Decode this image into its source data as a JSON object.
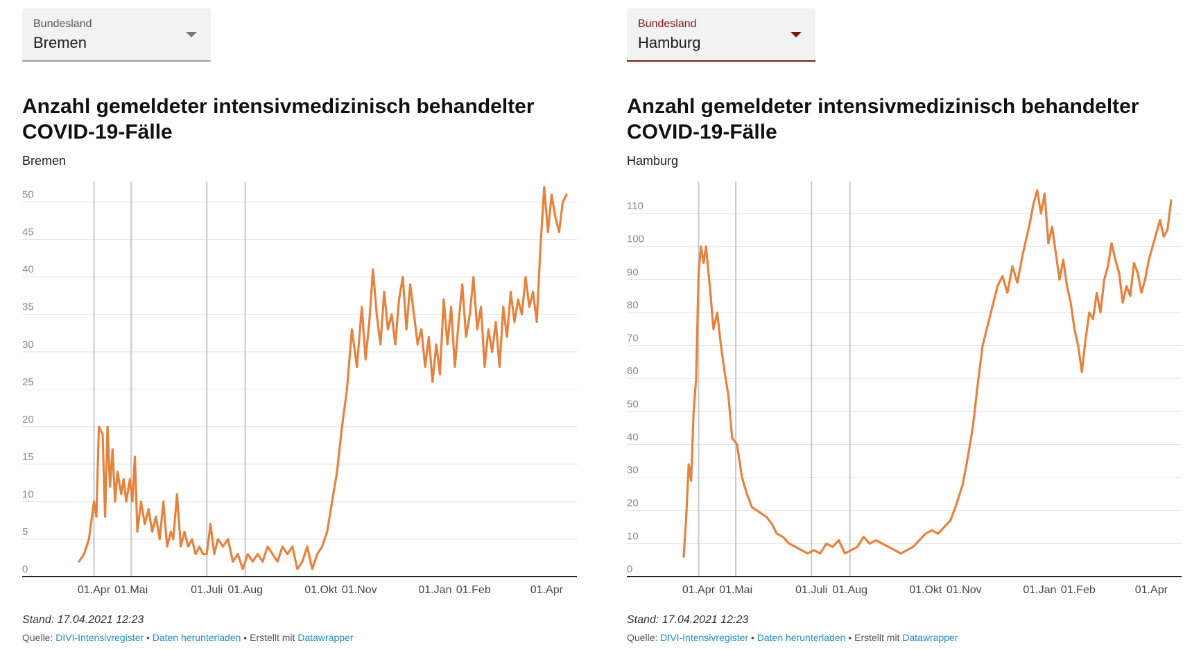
{
  "charts": [
    {
      "dropdown": {
        "label": "Bundesland",
        "value": "Bremen"
      },
      "stand": "Stand: 17.04.2021 12:23",
      "source": {
        "prefix": "Quelle: ",
        "link1": "DIVI-Intensivregister",
        "sep1": " • ",
        "link2": "Daten herunterladen",
        "sep2": " • Erstellt mit ",
        "link3": "Datawrapper"
      },
      "chart_data": {
        "type": "line",
        "title": "Anzahl gemeldeter intensivmedizinisch behandelter COVID-19-Fälle",
        "subtitle": "Bremen",
        "ylim": [
          0,
          52
        ],
        "y_ticks": [
          0,
          5,
          10,
          15,
          20,
          25,
          30,
          35,
          40,
          45,
          50
        ],
        "x_range": [
          "2020-03-20",
          "2021-04-17"
        ],
        "x_ticks": [
          {
            "label": "01.Apr",
            "date": "2020-04-01"
          },
          {
            "label": "01.Mai",
            "date": "2020-05-01"
          },
          {
            "label": "01.Juli",
            "date": "2020-07-01"
          },
          {
            "label": "01.Aug",
            "date": "2020-08-01"
          },
          {
            "label": "01.Okt",
            "date": "2020-10-01"
          },
          {
            "label": "01.Nov",
            "date": "2020-11-01"
          },
          {
            "label": "01.Jan",
            "date": "2021-01-01"
          },
          {
            "label": "01.Feb",
            "date": "2021-02-01"
          },
          {
            "label": "01.Apr",
            "date": "2021-04-01"
          }
        ],
        "vlines": [
          "2020-04-01",
          "2020-05-01",
          "2020-07-01",
          "2020-08-01"
        ],
        "grid": true,
        "line_color": "#e6823d",
        "series": [
          {
            "x": [
              "2020-03-20",
              "2020-03-24",
              "2020-03-28",
              "2020-04-01",
              "2020-04-03",
              "2020-04-05",
              "2020-04-08",
              "2020-04-10",
              "2020-04-12",
              "2020-04-14",
              "2020-04-16",
              "2020-04-18",
              "2020-04-20",
              "2020-04-23",
              "2020-04-25",
              "2020-04-27",
              "2020-04-30",
              "2020-05-02",
              "2020-05-04",
              "2020-05-06",
              "2020-05-09",
              "2020-05-12",
              "2020-05-15",
              "2020-05-18",
              "2020-05-21",
              "2020-05-24",
              "2020-05-27",
              "2020-05-30",
              "2020-06-02",
              "2020-06-04",
              "2020-06-07",
              "2020-06-10",
              "2020-06-13",
              "2020-06-16",
              "2020-06-19",
              "2020-06-22",
              "2020-06-25",
              "2020-06-28",
              "2020-07-01",
              "2020-07-04",
              "2020-07-07",
              "2020-07-10",
              "2020-07-14",
              "2020-07-18",
              "2020-07-22",
              "2020-07-26",
              "2020-07-30",
              "2020-08-03",
              "2020-08-07",
              "2020-08-11",
              "2020-08-15",
              "2020-08-19",
              "2020-08-23",
              "2020-08-27",
              "2020-08-31",
              "2020-09-04",
              "2020-09-08",
              "2020-09-12",
              "2020-09-16",
              "2020-09-20",
              "2020-09-24",
              "2020-09-28",
              "2020-10-02",
              "2020-10-06",
              "2020-10-10",
              "2020-10-14",
              "2020-10-18",
              "2020-10-22",
              "2020-10-26",
              "2020-10-30",
              "2020-11-03",
              "2020-11-06",
              "2020-11-09",
              "2020-11-12",
              "2020-11-15",
              "2020-11-18",
              "2020-11-21",
              "2020-11-24",
              "2020-11-27",
              "2020-11-30",
              "2020-12-03",
              "2020-12-06",
              "2020-12-09",
              "2020-12-12",
              "2020-12-15",
              "2020-12-18",
              "2020-12-21",
              "2020-12-24",
              "2020-12-27",
              "2020-12-30",
              "2021-01-02",
              "2021-01-05",
              "2021-01-08",
              "2021-01-11",
              "2021-01-14",
              "2021-01-17",
              "2021-01-20",
              "2021-01-23",
              "2021-01-26",
              "2021-01-29",
              "2021-02-01",
              "2021-02-04",
              "2021-02-07",
              "2021-02-10",
              "2021-02-13",
              "2021-02-16",
              "2021-02-19",
              "2021-02-22",
              "2021-02-25",
              "2021-02-28",
              "2021-03-03",
              "2021-03-06",
              "2021-03-09",
              "2021-03-12",
              "2021-03-15",
              "2021-03-18",
              "2021-03-21",
              "2021-03-24",
              "2021-03-27",
              "2021-03-30",
              "2021-04-02",
              "2021-04-05",
              "2021-04-08",
              "2021-04-11",
              "2021-04-14",
              "2021-04-17"
            ],
            "values": [
              2,
              3,
              5,
              10,
              8,
              20,
              19,
              8,
              20,
              12,
              17,
              10,
              14,
              11,
              13,
              10,
              13,
              10,
              16,
              6,
              10,
              7,
              9,
              6,
              8,
              5,
              10,
              4,
              6,
              5,
              11,
              4,
              6,
              4,
              5,
              3,
              4,
              3,
              3,
              7,
              3,
              5,
              4,
              5,
              2,
              3,
              1,
              3,
              2,
              3,
              2,
              4,
              3,
              2,
              4,
              3,
              4,
              1,
              2,
              4,
              1,
              3,
              4,
              6,
              10,
              14,
              20,
              25,
              33,
              28,
              36,
              29,
              34,
              41,
              35,
              31,
              38,
              33,
              35,
              31,
              37,
              40,
              33,
              39,
              35,
              31,
              33,
              28,
              32,
              26,
              31,
              27,
              37,
              31,
              36,
              28,
              34,
              39,
              32,
              35,
              40,
              33,
              36,
              28,
              33,
              30,
              34,
              28,
              36,
              32,
              38,
              34,
              37,
              35,
              40,
              36,
              38,
              34,
              44,
              52,
              46,
              51,
              48,
              46,
              50,
              51
            ]
          }
        ]
      }
    },
    {
      "dropdown": {
        "label": "Bundesland",
        "value": "Hamburg"
      },
      "stand": "Stand: 17.04.2021 12:23",
      "source": {
        "prefix": "Quelle: ",
        "link1": "DIVI-Intensivregister",
        "sep1": " • ",
        "link2": "Daten herunterladen",
        "sep2": " • Erstellt mit ",
        "link3": "Datawrapper"
      },
      "chart_data": {
        "type": "line",
        "title": "Anzahl gemeldeter intensivmedizinisch behandelter COVID-19-Fälle",
        "subtitle": "Hamburg",
        "ylim": [
          0,
          118
        ],
        "y_ticks": [
          0,
          10,
          20,
          30,
          40,
          50,
          60,
          70,
          80,
          90,
          100,
          110
        ],
        "x_range": [
          "2020-03-20",
          "2021-04-17"
        ],
        "x_ticks": [
          {
            "label": "01.Apr",
            "date": "2020-04-01"
          },
          {
            "label": "01.Mai",
            "date": "2020-05-01"
          },
          {
            "label": "01.Juli",
            "date": "2020-07-01"
          },
          {
            "label": "01.Aug",
            "date": "2020-08-01"
          },
          {
            "label": "01.Okt",
            "date": "2020-10-01"
          },
          {
            "label": "01.Nov",
            "date": "2020-11-01"
          },
          {
            "label": "01.Jan",
            "date": "2021-01-01"
          },
          {
            "label": "01.Feb",
            "date": "2021-02-01"
          },
          {
            "label": "01.Apr",
            "date": "2021-04-01"
          }
        ],
        "vlines": [
          "2020-04-01",
          "2020-05-01",
          "2020-07-01",
          "2020-08-01"
        ],
        "grid": true,
        "line_color": "#e6823d",
        "series": [
          {
            "x": [
              "2020-03-20",
              "2020-03-22",
              "2020-03-24",
              "2020-03-26",
              "2020-03-28",
              "2020-03-30",
              "2020-04-01",
              "2020-04-03",
              "2020-04-05",
              "2020-04-07",
              "2020-04-10",
              "2020-04-13",
              "2020-04-16",
              "2020-04-19",
              "2020-04-22",
              "2020-04-25",
              "2020-04-28",
              "2020-05-02",
              "2020-05-06",
              "2020-05-10",
              "2020-05-14",
              "2020-05-18",
              "2020-05-22",
              "2020-05-26",
              "2020-05-30",
              "2020-06-03",
              "2020-06-08",
              "2020-06-13",
              "2020-06-18",
              "2020-06-23",
              "2020-06-28",
              "2020-07-03",
              "2020-07-08",
              "2020-07-13",
              "2020-07-18",
              "2020-07-23",
              "2020-07-28",
              "2020-08-02",
              "2020-08-07",
              "2020-08-12",
              "2020-08-17",
              "2020-08-22",
              "2020-08-27",
              "2020-09-01",
              "2020-09-06",
              "2020-09-11",
              "2020-09-16",
              "2020-09-21",
              "2020-09-26",
              "2020-10-01",
              "2020-10-06",
              "2020-10-11",
              "2020-10-16",
              "2020-10-21",
              "2020-10-26",
              "2020-10-31",
              "2020-11-04",
              "2020-11-08",
              "2020-11-12",
              "2020-11-16",
              "2020-11-20",
              "2020-11-24",
              "2020-11-28",
              "2020-12-02",
              "2020-12-06",
              "2020-12-10",
              "2020-12-14",
              "2020-12-18",
              "2020-12-21",
              "2020-12-24",
              "2020-12-27",
              "2020-12-30",
              "2021-01-02",
              "2021-01-05",
              "2021-01-08",
              "2021-01-11",
              "2021-01-14",
              "2021-01-17",
              "2021-01-20",
              "2021-01-23",
              "2021-01-26",
              "2021-01-29",
              "2021-02-01",
              "2021-02-04",
              "2021-02-07",
              "2021-02-10",
              "2021-02-13",
              "2021-02-16",
              "2021-02-19",
              "2021-02-22",
              "2021-02-25",
              "2021-02-28",
              "2021-03-03",
              "2021-03-06",
              "2021-03-09",
              "2021-03-12",
              "2021-03-15",
              "2021-03-18",
              "2021-03-21",
              "2021-03-24",
              "2021-03-27",
              "2021-03-30",
              "2021-04-02",
              "2021-04-05",
              "2021-04-08",
              "2021-04-11",
              "2021-04-14",
              "2021-04-17"
            ],
            "values": [
              6,
              18,
              34,
              29,
              50,
              60,
              92,
              100,
              95,
              100,
              88,
              75,
              80,
              70,
              62,
              55,
              42,
              40,
              30,
              25,
              21,
              20,
              19,
              18,
              16,
              13,
              12,
              10,
              9,
              8,
              7,
              8,
              7,
              10,
              9,
              11,
              7,
              8,
              9,
              12,
              10,
              11,
              10,
              9,
              8,
              7,
              8,
              9,
              11,
              13,
              14,
              13,
              15,
              17,
              22,
              28,
              36,
              45,
              58,
              70,
              76,
              82,
              88,
              91,
              86,
              94,
              89,
              97,
              102,
              107,
              113,
              117,
              110,
              116,
              101,
              106,
              98,
              90,
              96,
              88,
              83,
              75,
              70,
              62,
              72,
              80,
              78,
              86,
              80,
              90,
              94,
              101,
              96,
              92,
              83,
              88,
              85,
              95,
              92,
              86,
              90,
              96,
              100,
              104,
              108,
              103,
              105,
              114
            ]
          }
        ]
      }
    }
  ]
}
